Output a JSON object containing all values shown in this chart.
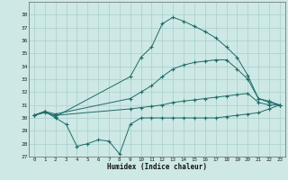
{
  "xlabel": "Humidex (Indice chaleur)",
  "background_color": "#cde8e5",
  "line_color": "#1e6b68",
  "grid_color": "#a8d0cc",
  "xlim": [
    -0.5,
    23.5
  ],
  "ylim": [
    27,
    39
  ],
  "xticks": [
    0,
    1,
    2,
    3,
    4,
    5,
    6,
    7,
    8,
    9,
    10,
    11,
    12,
    13,
    14,
    15,
    16,
    17,
    18,
    19,
    20,
    21,
    22,
    23
  ],
  "yticks": [
    27,
    28,
    29,
    30,
    31,
    32,
    33,
    34,
    35,
    36,
    37,
    38
  ],
  "series": [
    {
      "x": [
        0,
        1,
        2,
        9,
        10,
        11,
        12,
        13,
        14,
        15,
        16,
        17,
        18,
        19,
        20,
        21,
        22,
        23
      ],
      "y": [
        30.2,
        30.5,
        30.1,
        33.2,
        34.7,
        35.5,
        37.3,
        37.8,
        37.5,
        37.1,
        36.7,
        36.2,
        35.5,
        34.7,
        33.3,
        31.5,
        31.2,
        31.0
      ]
    },
    {
      "x": [
        0,
        1,
        2,
        9,
        10,
        11,
        12,
        13,
        14,
        15,
        16,
        17,
        18,
        19,
        20,
        21,
        22,
        23
      ],
      "y": [
        30.2,
        30.5,
        30.3,
        31.5,
        32.0,
        32.5,
        33.2,
        33.8,
        34.1,
        34.3,
        34.4,
        34.5,
        34.5,
        33.8,
        33.0,
        31.5,
        31.3,
        31.0
      ]
    },
    {
      "x": [
        0,
        1,
        2,
        9,
        10,
        11,
        12,
        13,
        14,
        15,
        16,
        17,
        18,
        19,
        20,
        21,
        22,
        23
      ],
      "y": [
        30.2,
        30.4,
        30.2,
        30.7,
        30.8,
        30.9,
        31.0,
        31.2,
        31.3,
        31.4,
        31.5,
        31.6,
        31.7,
        31.8,
        31.9,
        31.2,
        31.0,
        31.0
      ]
    },
    {
      "x": [
        0,
        1,
        2,
        3,
        4,
        5,
        6,
        7,
        8,
        9,
        10,
        11,
        12,
        13,
        14,
        15,
        16,
        17,
        18,
        19,
        20,
        21,
        22,
        23
      ],
      "y": [
        30.2,
        30.5,
        30.0,
        29.5,
        27.8,
        28.0,
        28.3,
        28.2,
        27.2,
        29.5,
        30.0,
        30.0,
        30.0,
        30.0,
        30.0,
        30.0,
        30.0,
        30.0,
        30.1,
        30.2,
        30.3,
        30.4,
        30.7,
        31.0
      ]
    }
  ]
}
